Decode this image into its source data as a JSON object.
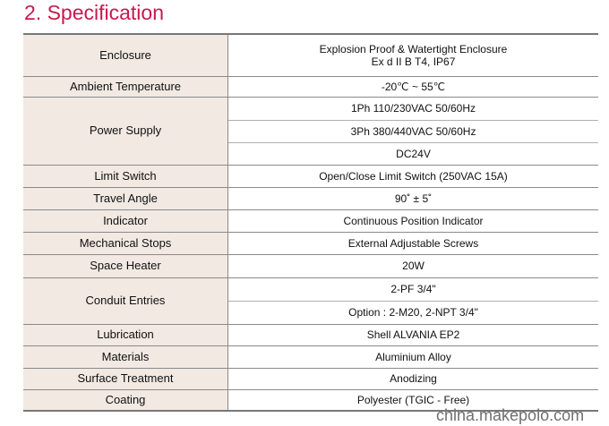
{
  "title": "2. Specification",
  "rows": {
    "enclosure": {
      "label": "Enclosure",
      "value_1": "Explosion Proof & Watertight Enclosure",
      "value_2": "Ex d II B T4,  IP67"
    },
    "ambient": {
      "label": "Ambient Temperature",
      "value": "-20℃ ~ 55℃"
    },
    "power": {
      "label": "Power Supply",
      "values": [
        "1Ph 110/230VAC 50/60Hz",
        "3Ph 380/440VAC 50/60Hz",
        "DC24V"
      ]
    },
    "limit": {
      "label": "Limit Switch",
      "value": "Open/Close Limit Switch (250VAC 15A)"
    },
    "travel": {
      "label": "Travel Angle",
      "value": "90˚ ± 5˚"
    },
    "indicator": {
      "label": "Indicator",
      "value": "Continuous Position Indicator"
    },
    "stops": {
      "label": "Mechanical Stops",
      "value": "External Adjustable Screws"
    },
    "heater": {
      "label": "Space Heater",
      "value": "20W"
    },
    "conduit": {
      "label": "Conduit Entries",
      "values": [
        "2-PF 3/4\"",
        "Option : 2-M20, 2-NPT 3/4\""
      ]
    },
    "lubrication": {
      "label": "Lubrication",
      "value": "Shell ALVANIA EP2"
    },
    "materials": {
      "label": "Materials",
      "value": "Aluminium Alloy"
    },
    "surface": {
      "label": "Surface Treatment",
      "value": "Anodizing"
    },
    "coating": {
      "label": "Coating",
      "value": "Polyester (TGIC - Free)"
    }
  },
  "watermark": "china.makepolo.com",
  "colors": {
    "title": "#c8194e",
    "label_bg": "#f1e9e2",
    "rule": "#777777"
  }
}
